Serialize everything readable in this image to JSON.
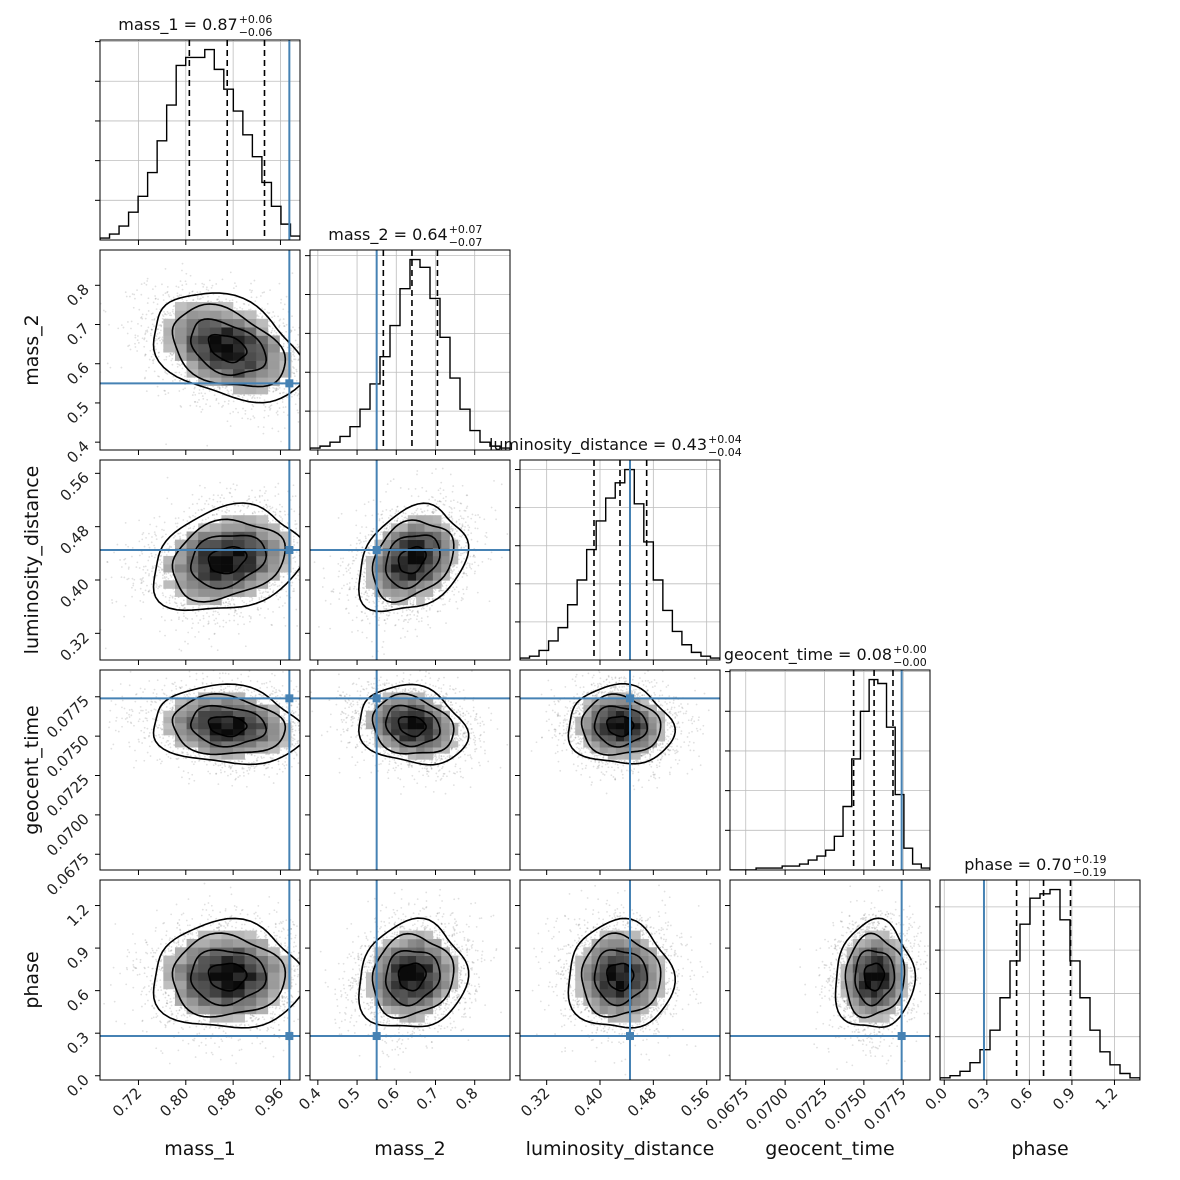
{
  "chart_data": {
    "type": "corner",
    "grid": true,
    "colors": {
      "truth": "#4682b4",
      "hist": "#000000",
      "contour": "#000000",
      "grid": "#bdbdbd"
    },
    "parameters": [
      {
        "name": "mass_1",
        "label": "mass_1",
        "range": [
          0.655,
          0.993
        ],
        "ticks": [
          0.72,
          0.8,
          0.88,
          0.96
        ],
        "tick_labels": [
          "0.72",
          "0.80",
          "0.88",
          "0.96"
        ],
        "truth": 0.975,
        "title": "mass_1 = 0.87",
        "median": "0.87",
        "err_plus": "+0.06",
        "err_minus": "−0.06",
        "quantiles": [
          0.806,
          0.87,
          0.933
        ],
        "hist": [
          1,
          3,
          7,
          14,
          22,
          34,
          50,
          68,
          88,
          92,
          92,
          96,
          86,
          76,
          65,
          53,
          42,
          29,
          17,
          8,
          2
        ]
      },
      {
        "name": "mass_2",
        "label": "mass_2",
        "range": [
          0.38,
          0.89
        ],
        "ticks": [
          0.4,
          0.5,
          0.6,
          0.7,
          0.8
        ],
        "tick_labels": [
          "0.4",
          "0.5",
          "0.6",
          "0.7",
          "0.8"
        ],
        "truth": 0.55,
        "title": "mass_2 = 0.64",
        "median": "0.64",
        "err_plus": "+0.07",
        "err_minus": "−0.07",
        "quantiles": [
          0.567,
          0.64,
          0.705
        ],
        "hist": [
          1,
          2,
          4,
          7,
          12,
          21,
          34,
          48,
          64,
          83,
          98,
          94,
          78,
          58,
          37,
          21,
          10,
          4,
          2,
          1
        ]
      },
      {
        "name": "luminosity_distance",
        "label": "luminosity_distance",
        "range": [
          0.28,
          0.58
        ],
        "ticks": [
          0.32,
          0.4,
          0.48,
          0.56
        ],
        "tick_labels": [
          "0.32",
          "0.40",
          "0.48",
          "0.56"
        ],
        "truth": 0.445,
        "title": "luminosity_distance = 0.43",
        "median": "0.43",
        "err_plus": "+0.04",
        "err_minus": "−0.04",
        "quantiles": [
          0.391,
          0.43,
          0.47
        ],
        "hist": [
          1,
          2,
          5,
          10,
          17,
          29,
          42,
          58,
          73,
          85,
          93,
          100,
          82,
          62,
          42,
          26,
          15,
          8,
          4,
          2,
          1
        ]
      },
      {
        "name": "geocent_time",
        "label": "geocent_time",
        "range": [
          0.0665,
          0.0792
        ],
        "ticks": [
          0.0675,
          0.07,
          0.0725,
          0.075,
          0.0775
        ],
        "tick_labels": [
          "0.0675",
          "0.0700",
          "0.0725",
          "0.0750",
          "0.0775"
        ],
        "truth": 0.0774,
        "title": "geocent_time = 0.08",
        "median": "0.08",
        "err_plus": "+0.00",
        "err_minus": "−0.00",
        "quantiles": [
          0.07435,
          0.07565,
          0.07685
        ],
        "hist": [
          0,
          0,
          0,
          1,
          1,
          1,
          2,
          2,
          3,
          5,
          7,
          10,
          17,
          32,
          56,
          80,
          96,
          94,
          72,
          38,
          11,
          3,
          1
        ]
      },
      {
        "name": "phase",
        "label": "phase",
        "range": [
          -0.03,
          1.38
        ],
        "ticks": [
          0.0,
          0.3,
          0.6,
          0.9,
          1.2
        ],
        "tick_labels": [
          "0.0",
          "0.3",
          "0.6",
          "0.9",
          "1.2"
        ],
        "truth": 0.28,
        "title": "phase = 0.70",
        "median": "0.70",
        "err_plus": "+0.19",
        "err_minus": "−0.19",
        "quantiles": [
          0.51,
          0.7,
          0.89
        ],
        "hist": [
          1,
          2,
          4,
          8,
          14,
          23,
          38,
          55,
          72,
          84,
          86,
          88,
          74,
          55,
          38,
          23,
          13,
          7,
          3,
          1
        ]
      }
    ],
    "joint": {
      "mass_2|mass_1": {
        "correlation": -0.35
      },
      "luminosity_distance|mass_1": {
        "correlation": 0.22
      },
      "luminosity_distance|mass_2": {
        "correlation": 0.28
      },
      "geocent_time|mass_1": {
        "correlation": -0.12
      },
      "geocent_time|mass_2": {
        "correlation": -0.18
      },
      "geocent_time|luminosity_distance": {
        "correlation": -0.05
      },
      "phase|mass_1": {
        "correlation": 0.0
      },
      "phase|mass_2": {
        "correlation": 0.1
      },
      "phase|luminosity_distance": {
        "correlation": 0.0
      },
      "phase|geocent_time": {
        "correlation": 0.05
      }
    }
  }
}
